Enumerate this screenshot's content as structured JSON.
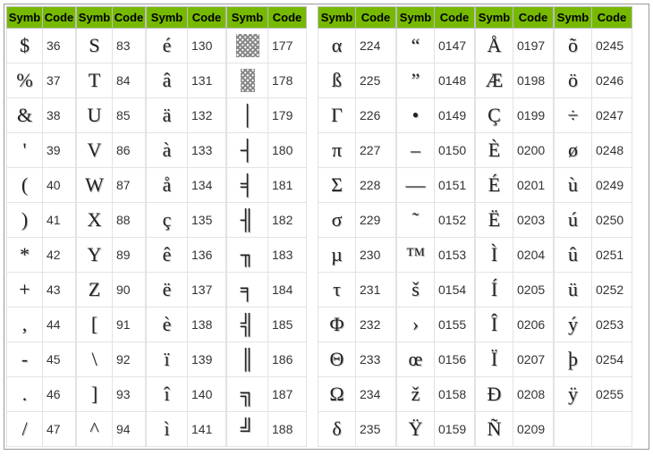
{
  "header_bg": "#76b900",
  "header_labels": {
    "sym": "Symb",
    "code": "Code"
  },
  "left_block": {
    "columns": [
      {
        "rows": [
          {
            "sym": "$",
            "code": "36"
          },
          {
            "sym": "%",
            "code": "37"
          },
          {
            "sym": "&",
            "code": "38"
          },
          {
            "sym": "'",
            "code": "39"
          },
          {
            "sym": "(",
            "code": "40"
          },
          {
            "sym": ")",
            "code": "41"
          },
          {
            "sym": "*",
            "code": "42"
          },
          {
            "sym": "+",
            "code": "43"
          },
          {
            "sym": ",",
            "code": "44"
          },
          {
            "sym": "-",
            "code": "45"
          },
          {
            "sym": ".",
            "code": "46"
          },
          {
            "sym": "/",
            "code": "47"
          }
        ]
      },
      {
        "rows": [
          {
            "sym": "S",
            "code": "83"
          },
          {
            "sym": "T",
            "code": "84"
          },
          {
            "sym": "U",
            "code": "85"
          },
          {
            "sym": "V",
            "code": "86"
          },
          {
            "sym": "W",
            "code": "87"
          },
          {
            "sym": "X",
            "code": "88"
          },
          {
            "sym": "Y",
            "code": "89"
          },
          {
            "sym": "Z",
            "code": "90"
          },
          {
            "sym": "[",
            "code": "91"
          },
          {
            "sym": "\\",
            "code": "92"
          },
          {
            "sym": "]",
            "code": "93"
          },
          {
            "sym": "^",
            "code": "94"
          }
        ]
      },
      {
        "rows": [
          {
            "sym": "é",
            "code": "130"
          },
          {
            "sym": "â",
            "code": "131"
          },
          {
            "sym": "ä",
            "code": "132"
          },
          {
            "sym": "à",
            "code": "133"
          },
          {
            "sym": "å",
            "code": "134"
          },
          {
            "sym": "ç",
            "code": "135"
          },
          {
            "sym": "ê",
            "code": "136"
          },
          {
            "sym": "ë",
            "code": "137"
          },
          {
            "sym": "è",
            "code": "138"
          },
          {
            "sym": "ï",
            "code": "139"
          },
          {
            "sym": "î",
            "code": "140"
          },
          {
            "sym": "ì",
            "code": "141"
          }
        ]
      },
      {
        "rows": [
          {
            "sym": "HATCH_FULL",
            "code": "177"
          },
          {
            "sym": "HATCH_HALF",
            "code": "178"
          },
          {
            "sym": "│",
            "code": "179"
          },
          {
            "sym": "┤",
            "code": "180"
          },
          {
            "sym": "╡",
            "code": "181"
          },
          {
            "sym": "╢",
            "code": "182"
          },
          {
            "sym": "╖",
            "code": "183"
          },
          {
            "sym": "╕",
            "code": "184"
          },
          {
            "sym": "╣",
            "code": "185"
          },
          {
            "sym": "║",
            "code": "186"
          },
          {
            "sym": "╗",
            "code": "187"
          },
          {
            "sym": "╝",
            "code": "188"
          }
        ]
      }
    ]
  },
  "right_block": {
    "columns": [
      {
        "rows": [
          {
            "sym": "α",
            "code": "224"
          },
          {
            "sym": "ß",
            "code": "225"
          },
          {
            "sym": "Γ",
            "code": "226"
          },
          {
            "sym": "π",
            "code": "227"
          },
          {
            "sym": "Σ",
            "code": "228"
          },
          {
            "sym": "σ",
            "code": "229"
          },
          {
            "sym": "µ",
            "code": "230"
          },
          {
            "sym": "τ",
            "code": "231"
          },
          {
            "sym": "Φ",
            "code": "232"
          },
          {
            "sym": "Θ",
            "code": "233"
          },
          {
            "sym": "Ω",
            "code": "234"
          },
          {
            "sym": "δ",
            "code": "235"
          }
        ]
      },
      {
        "rows": [
          {
            "sym": "“",
            "code": "0147"
          },
          {
            "sym": "”",
            "code": "0148"
          },
          {
            "sym": "•",
            "code": "0149"
          },
          {
            "sym": "–",
            "code": "0150"
          },
          {
            "sym": "—",
            "code": "0151"
          },
          {
            "sym": "˜",
            "code": "0152"
          },
          {
            "sym": "™",
            "code": "0153"
          },
          {
            "sym": "š",
            "code": "0154"
          },
          {
            "sym": "›",
            "code": "0155"
          },
          {
            "sym": "œ",
            "code": "0156"
          },
          {
            "sym": "ž",
            "code": "0158"
          },
          {
            "sym": "Ÿ",
            "code": "0159"
          }
        ]
      },
      {
        "rows": [
          {
            "sym": "Å",
            "code": "0197"
          },
          {
            "sym": "Æ",
            "code": "0198"
          },
          {
            "sym": "Ç",
            "code": "0199"
          },
          {
            "sym": "È",
            "code": "0200"
          },
          {
            "sym": "É",
            "code": "0201"
          },
          {
            "sym": "Ë",
            "code": "0203"
          },
          {
            "sym": "Ì",
            "code": "0204"
          },
          {
            "sym": "Í",
            "code": "0205"
          },
          {
            "sym": "Î",
            "code": "0206"
          },
          {
            "sym": "Ï",
            "code": "0207"
          },
          {
            "sym": "Đ",
            "code": "0208"
          },
          {
            "sym": "Ñ",
            "code": "0209"
          }
        ]
      },
      {
        "rows": [
          {
            "sym": "õ",
            "code": "0245"
          },
          {
            "sym": "ö",
            "code": "0246"
          },
          {
            "sym": "÷",
            "code": "0247"
          },
          {
            "sym": "ø",
            "code": "0248"
          },
          {
            "sym": "ù",
            "code": "0249"
          },
          {
            "sym": "ú",
            "code": "0250"
          },
          {
            "sym": "û",
            "code": "0251"
          },
          {
            "sym": "ü",
            "code": "0252"
          },
          {
            "sym": "ý",
            "code": "0253"
          },
          {
            "sym": "þ",
            "code": "0254"
          },
          {
            "sym": "ÿ",
            "code": "0255"
          },
          {
            "sym": "",
            "code": ""
          }
        ]
      }
    ]
  }
}
